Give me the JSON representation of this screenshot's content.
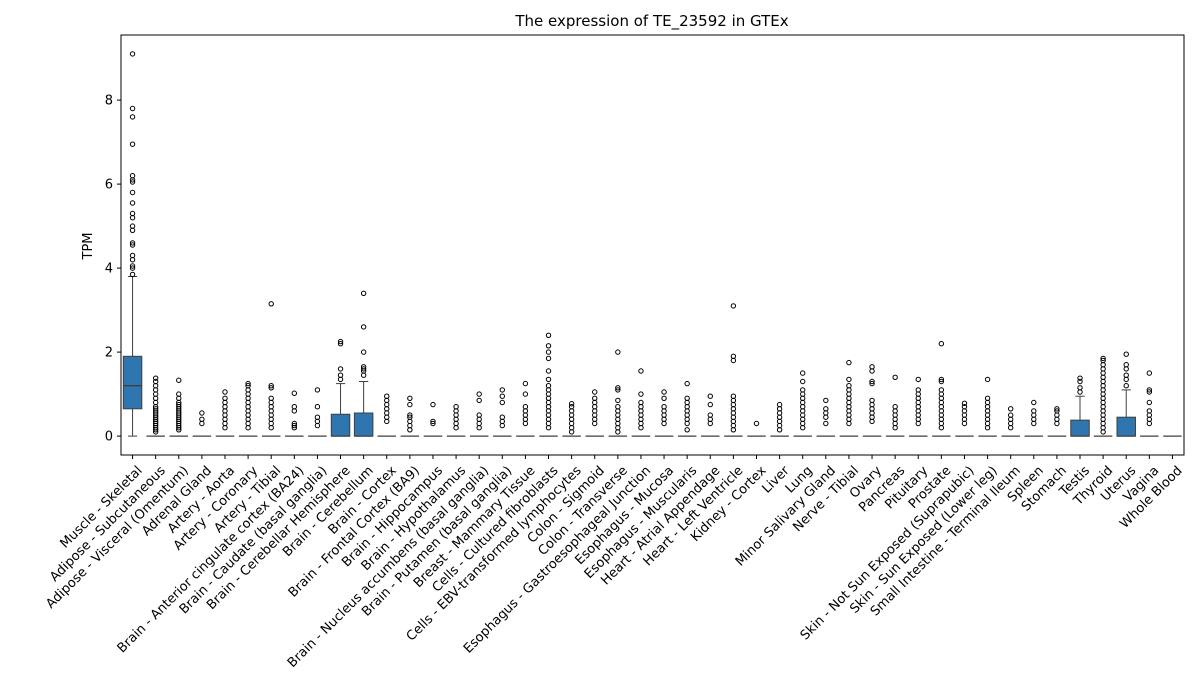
{
  "chart_data": {
    "type": "box",
    "title": "The expression of TE_23592 in GTEx",
    "xlabel": "",
    "ylabel": "TPM",
    "ylim": [
      -0.45,
      9.55
    ],
    "yticks": [
      0,
      2,
      4,
      6,
      8
    ],
    "grid": false,
    "legend": "none",
    "box_color": "#2f76b0",
    "categories": [
      "Muscle - Skeletal",
      "Adipose - Subcutaneous",
      "Adipose - Visceral (Omentum)",
      "Adrenal Gland",
      "Artery - Aorta",
      "Artery - Coronary",
      "Artery - Tibial",
      "Brain - Anterior cingulate cortex (BA24)",
      "Brain - Caudate (basal ganglia)",
      "Brain - Cerebellar Hemisphere",
      "Brain - Cerebellum",
      "Brain - Cortex",
      "Brain - Frontal Cortex (BA9)",
      "Brain - Hippocampus",
      "Brain - Hypothalamus",
      "Brain - Nucleus accumbens (basal ganglia)",
      "Brain - Putamen (basal ganglia)",
      "Breast - Mammary Tissue",
      "Cells - Cultured fibroblasts",
      "Cells - EBV-transformed lymphocytes",
      "Colon - Sigmoid",
      "Colon - Transverse",
      "Esophagus - Gastroesophageal Junction",
      "Esophagus - Mucosa",
      "Esophagus - Muscularis",
      "Heart - Atrial Appendage",
      "Heart - Left Ventricle",
      "Kidney - Cortex",
      "Liver",
      "Lung",
      "Minor Salivary Gland",
      "Nerve - Tibial",
      "Ovary",
      "Pancreas",
      "Pituitary",
      "Prostate",
      "Skin - Not Sun Exposed (Suprapubic)",
      "Skin - Sun Exposed (Lower leg)",
      "Small Intestine - Terminal Ileum",
      "Spleen",
      "Stomach",
      "Testis",
      "Thyroid",
      "Uterus",
      "Vagina",
      "Whole Blood"
    ],
    "boxes": [
      {
        "q1": 0.65,
        "median": 1.2,
        "q3": 1.9,
        "whislo": 0,
        "whishi": 3.8,
        "fliers": [
          3.85,
          4.0,
          4.05,
          4.2,
          4.3,
          4.55,
          4.6,
          4.9,
          5.0,
          5.2,
          5.3,
          5.55,
          5.8,
          6.05,
          6.1,
          6.2,
          6.95,
          7.6,
          7.8,
          9.1
        ]
      },
      {
        "q1": 0,
        "median": 0,
        "q3": 0,
        "whislo": 0,
        "whishi": 0,
        "fliers": [
          0.1,
          0.15,
          0.2,
          0.25,
          0.3,
          0.35,
          0.4,
          0.45,
          0.5,
          0.55,
          0.6,
          0.65,
          0.7,
          0.8,
          0.9,
          1.0,
          1.1,
          1.2,
          1.3,
          1.38
        ]
      },
      {
        "q1": 0,
        "median": 0,
        "q3": 0,
        "whislo": 0,
        "whishi": 0,
        "fliers": [
          0.15,
          0.2,
          0.25,
          0.3,
          0.35,
          0.4,
          0.45,
          0.5,
          0.55,
          0.6,
          0.65,
          0.7,
          0.75,
          0.8,
          0.9,
          1.0,
          1.33
        ]
      },
      {
        "q1": 0,
        "median": 0,
        "q3": 0,
        "whislo": 0,
        "whishi": 0,
        "fliers": [
          0.3,
          0.4,
          0.55
        ]
      },
      {
        "q1": 0,
        "median": 0,
        "q3": 0,
        "whislo": 0,
        "whishi": 0,
        "fliers": [
          0.2,
          0.3,
          0.4,
          0.5,
          0.6,
          0.7,
          0.8,
          0.9,
          1.05
        ]
      },
      {
        "q1": 0,
        "median": 0,
        "q3": 0,
        "whislo": 0,
        "whishi": 0,
        "fliers": [
          0.2,
          0.3,
          0.4,
          0.5,
          0.6,
          0.7,
          0.8,
          0.9,
          1.0,
          1.1,
          1.2,
          1.25
        ]
      },
      {
        "q1": 0,
        "median": 0,
        "q3": 0,
        "whislo": 0,
        "whishi": 0,
        "fliers": [
          0.2,
          0.3,
          0.4,
          0.5,
          0.6,
          0.7,
          0.8,
          0.9,
          1.15,
          1.2,
          3.15
        ]
      },
      {
        "q1": 0,
        "median": 0,
        "q3": 0,
        "whislo": 0,
        "whishi": 0,
        "fliers": [
          0.2,
          0.25,
          0.3,
          0.6,
          0.7,
          1.02
        ]
      },
      {
        "q1": 0,
        "median": 0,
        "q3": 0,
        "whislo": 0,
        "whishi": 0,
        "fliers": [
          0.25,
          0.35,
          0.45,
          0.7,
          1.1
        ]
      },
      {
        "q1": 0,
        "median": 0,
        "q3": 0.52,
        "whislo": 0,
        "whishi": 1.25,
        "fliers": [
          1.35,
          1.45,
          1.6,
          2.2,
          2.25
        ]
      },
      {
        "q1": 0,
        "median": 0,
        "q3": 0.55,
        "whislo": 0,
        "whishi": 1.3,
        "fliers": [
          1.45,
          1.55,
          1.6,
          1.65,
          2.0,
          2.6,
          3.4
        ]
      },
      {
        "q1": 0,
        "median": 0,
        "q3": 0,
        "whislo": 0,
        "whishi": 0,
        "fliers": [
          0.35,
          0.45,
          0.55,
          0.65,
          0.75,
          0.85,
          0.95
        ]
      },
      {
        "q1": 0,
        "median": 0,
        "q3": 0,
        "whislo": 0,
        "whishi": 0,
        "fliers": [
          0.15,
          0.25,
          0.35,
          0.45,
          0.5,
          0.75,
          0.9
        ]
      },
      {
        "q1": 0,
        "median": 0,
        "q3": 0,
        "whislo": 0,
        "whishi": 0,
        "fliers": [
          0.3,
          0.35,
          0.75
        ]
      },
      {
        "q1": 0,
        "median": 0,
        "q3": 0,
        "whislo": 0,
        "whishi": 0,
        "fliers": [
          0.2,
          0.3,
          0.4,
          0.5,
          0.6,
          0.7
        ]
      },
      {
        "q1": 0,
        "median": 0,
        "q3": 0,
        "whislo": 0,
        "whishi": 0,
        "fliers": [
          0.2,
          0.3,
          0.4,
          0.5,
          0.85,
          1.0
        ]
      },
      {
        "q1": 0,
        "median": 0,
        "q3": 0,
        "whislo": 0,
        "whishi": 0,
        "fliers": [
          0.25,
          0.35,
          0.45,
          0.8,
          0.95,
          1.1
        ]
      },
      {
        "q1": 0,
        "median": 0,
        "q3": 0,
        "whislo": 0,
        "whishi": 0,
        "fliers": [
          0.3,
          0.4,
          0.5,
          0.6,
          0.7,
          1.0,
          1.25
        ]
      },
      {
        "q1": 0,
        "median": 0,
        "q3": 0,
        "whislo": 0,
        "whishi": 0,
        "fliers": [
          0.2,
          0.3,
          0.4,
          0.5,
          0.6,
          0.7,
          0.8,
          0.9,
          1.0,
          1.1,
          1.2,
          1.35,
          1.55,
          1.85,
          2.0,
          2.15,
          2.4
        ]
      },
      {
        "q1": 0,
        "median": 0,
        "q3": 0,
        "whislo": 0,
        "whishi": 0,
        "fliers": [
          0.1,
          0.2,
          0.3,
          0.4,
          0.5,
          0.6,
          0.7,
          0.77
        ]
      },
      {
        "q1": 0,
        "median": 0,
        "q3": 0,
        "whislo": 0,
        "whishi": 0,
        "fliers": [
          0.3,
          0.4,
          0.5,
          0.6,
          0.7,
          0.8,
          0.9,
          1.05
        ]
      },
      {
        "q1": 0,
        "median": 0,
        "q3": 0,
        "whislo": 0,
        "whishi": 0,
        "fliers": [
          0.1,
          0.2,
          0.3,
          0.4,
          0.5,
          0.6,
          0.7,
          0.85,
          1.1,
          1.15,
          2.0
        ]
      },
      {
        "q1": 0,
        "median": 0,
        "q3": 0,
        "whislo": 0,
        "whishi": 0,
        "fliers": [
          0.2,
          0.3,
          0.4,
          0.5,
          0.6,
          0.7,
          0.8,
          1.0,
          1.55
        ]
      },
      {
        "q1": 0,
        "median": 0,
        "q3": 0,
        "whislo": 0,
        "whishi": 0,
        "fliers": [
          0.3,
          0.4,
          0.5,
          0.6,
          0.7,
          0.9,
          1.05
        ]
      },
      {
        "q1": 0,
        "median": 0,
        "q3": 0,
        "whislo": 0,
        "whishi": 0,
        "fliers": [
          0.15,
          0.3,
          0.4,
          0.5,
          0.6,
          0.7,
          0.8,
          0.9,
          1.25
        ]
      },
      {
        "q1": 0,
        "median": 0,
        "q3": 0,
        "whislo": 0,
        "whishi": 0,
        "fliers": [
          0.3,
          0.4,
          0.5,
          0.75,
          0.95
        ]
      },
      {
        "q1": 0,
        "median": 0,
        "q3": 0,
        "whislo": 0,
        "whishi": 0,
        "fliers": [
          0.15,
          0.25,
          0.35,
          0.45,
          0.55,
          0.65,
          0.75,
          0.85,
          0.95,
          1.8,
          1.9,
          3.1
        ]
      },
      {
        "q1": 0,
        "median": 0,
        "q3": 0,
        "whislo": 0,
        "whishi": 0,
        "fliers": [
          0.3
        ]
      },
      {
        "q1": 0,
        "median": 0,
        "q3": 0,
        "whislo": 0,
        "whishi": 0,
        "fliers": [
          0.15,
          0.25,
          0.35,
          0.45,
          0.55,
          0.65,
          0.75
        ]
      },
      {
        "q1": 0,
        "median": 0,
        "q3": 0,
        "whislo": 0,
        "whishi": 0,
        "fliers": [
          0.2,
          0.3,
          0.4,
          0.5,
          0.6,
          0.7,
          0.8,
          0.9,
          1.0,
          1.1,
          1.3,
          1.5
        ]
      },
      {
        "q1": 0,
        "median": 0,
        "q3": 0,
        "whislo": 0,
        "whishi": 0,
        "fliers": [
          0.3,
          0.45,
          0.55,
          0.65,
          0.85
        ]
      },
      {
        "q1": 0,
        "median": 0,
        "q3": 0,
        "whislo": 0,
        "whishi": 0,
        "fliers": [
          0.3,
          0.4,
          0.5,
          0.6,
          0.7,
          0.8,
          0.9,
          1.0,
          1.1,
          1.2,
          1.35,
          1.75
        ]
      },
      {
        "q1": 0,
        "median": 0,
        "q3": 0,
        "whislo": 0,
        "whishi": 0,
        "fliers": [
          0.35,
          0.45,
          0.55,
          0.65,
          0.75,
          0.85,
          1.25,
          1.3,
          1.55,
          1.65
        ]
      },
      {
        "q1": 0,
        "median": 0,
        "q3": 0,
        "whislo": 0,
        "whishi": 0,
        "fliers": [
          0.2,
          0.3,
          0.4,
          0.5,
          0.6,
          0.7,
          1.4
        ]
      },
      {
        "q1": 0,
        "median": 0,
        "q3": 0,
        "whislo": 0,
        "whishi": 0,
        "fliers": [
          0.3,
          0.4,
          0.5,
          0.6,
          0.7,
          0.8,
          0.9,
          1.0,
          1.1,
          1.35
        ]
      },
      {
        "q1": 0,
        "median": 0,
        "q3": 0,
        "whislo": 0,
        "whishi": 0,
        "fliers": [
          0.2,
          0.3,
          0.4,
          0.5,
          0.6,
          0.7,
          0.8,
          0.9,
          1.0,
          1.1,
          1.3,
          1.35,
          2.2
        ]
      },
      {
        "q1": 0,
        "median": 0,
        "q3": 0,
        "whislo": 0,
        "whishi": 0,
        "fliers": [
          0.3,
          0.4,
          0.5,
          0.6,
          0.7,
          0.78
        ]
      },
      {
        "q1": 0,
        "median": 0,
        "q3": 0,
        "whislo": 0,
        "whishi": 0,
        "fliers": [
          0.2,
          0.3,
          0.4,
          0.5,
          0.6,
          0.7,
          0.8,
          0.9,
          1.35
        ]
      },
      {
        "q1": 0,
        "median": 0,
        "q3": 0,
        "whislo": 0,
        "whishi": 0,
        "fliers": [
          0.2,
          0.3,
          0.4,
          0.5,
          0.65
        ]
      },
      {
        "q1": 0,
        "median": 0,
        "q3": 0,
        "whislo": 0,
        "whishi": 0,
        "fliers": [
          0.3,
          0.4,
          0.5,
          0.6,
          0.8
        ]
      },
      {
        "q1": 0,
        "median": 0,
        "q3": 0,
        "whislo": 0,
        "whishi": 0,
        "fliers": [
          0.3,
          0.4,
          0.5,
          0.6,
          0.65
        ]
      },
      {
        "q1": 0,
        "median": 0,
        "q3": 0.38,
        "whislo": 0,
        "whishi": 0.95,
        "fliers": [
          1.05,
          1.15,
          1.3,
          1.38
        ]
      },
      {
        "q1": 0,
        "median": 0,
        "q3": 0,
        "whislo": 0,
        "whishi": 0,
        "fliers": [
          0.1,
          0.2,
          0.3,
          0.4,
          0.5,
          0.6,
          0.7,
          0.8,
          0.9,
          1.0,
          1.1,
          1.2,
          1.3,
          1.4,
          1.5,
          1.6,
          1.7,
          1.8,
          1.85
        ]
      },
      {
        "q1": 0,
        "median": 0,
        "q3": 0.45,
        "whislo": 0,
        "whishi": 1.1,
        "fliers": [
          1.2,
          1.35,
          1.45,
          1.6,
          1.7,
          1.95
        ]
      },
      {
        "q1": 0,
        "median": 0,
        "q3": 0,
        "whislo": 0,
        "whishi": 0,
        "fliers": [
          0.3,
          0.4,
          0.5,
          0.6,
          0.8,
          1.05,
          1.1,
          1.5
        ]
      },
      {
        "q1": 0,
        "median": 0,
        "q3": 0,
        "whislo": 0,
        "whishi": 0,
        "fliers": []
      }
    ]
  }
}
